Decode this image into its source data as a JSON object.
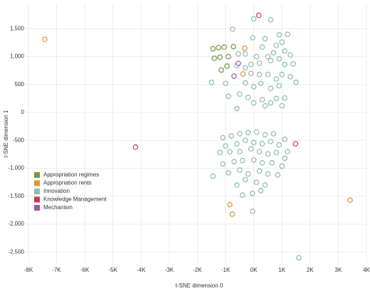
{
  "chart_data": {
    "type": "scatter",
    "x_label": "t-SNE dimension 0",
    "y_label": "t-SNE dimension 1",
    "xlim": [
      -8100,
      4000
    ],
    "ylim": [
      -2700,
      1950
    ],
    "grid": true,
    "legend": "lower-left",
    "xticks": [
      {
        "value": -8000,
        "label": "-8K"
      },
      {
        "value": -7000,
        "label": "-7K"
      },
      {
        "value": -6000,
        "label": "-6K"
      },
      {
        "value": -5000,
        "label": "-5K"
      },
      {
        "value": -4000,
        "label": "-4K"
      },
      {
        "value": -3000,
        "label": "-3K"
      },
      {
        "value": -2000,
        "label": "-2K"
      },
      {
        "value": -1000,
        "label": "-1K"
      },
      {
        "value": 0,
        "label": "0K"
      },
      {
        "value": 1000,
        "label": "1K"
      },
      {
        "value": 2000,
        "label": "2K"
      },
      {
        "value": 3000,
        "label": "3K"
      },
      {
        "value": 4000,
        "label": "4K"
      }
    ],
    "yticks": [
      {
        "value": 1500,
        "label": "1,500"
      },
      {
        "value": 1000,
        "label": "1,000"
      },
      500,
      0,
      -500,
      {
        "value": -1000,
        "label": "-1,000"
      },
      {
        "value": -1500,
        "label": "-1,500"
      },
      {
        "value": -2000,
        "label": "-2,000"
      },
      {
        "value": -2500,
        "label": "-2,500"
      }
    ],
    "series": [
      {
        "name": "Appropriation regimes",
        "color": "#6f9a3c",
        "x": [
          -1450,
          -1250,
          -1050,
          -720,
          -1400,
          -1200,
          -900,
          -1150,
          -950
        ],
        "y": [
          1140,
          1160,
          1170,
          1180,
          970,
          990,
          1000,
          760,
          830
        ]
      },
      {
        "name": "Appropriation rents",
        "color": "#d69a34",
        "x": [
          -7420,
          -320,
          -850,
          -760,
          3420,
          -380
        ],
        "y": [
          1310,
          1150,
          -1650,
          -1820,
          -1570,
          690
        ]
      },
      {
        "name": "Innovation",
        "color": "#8dbab2",
        "x": [
          -750,
          -40,
          0,
          600,
          900,
          1200,
          1000,
          800,
          1100,
          1300,
          700,
          400,
          300,
          600,
          900,
          1100,
          1400,
          200,
          -100,
          -300,
          -600,
          -100,
          200,
          500,
          800,
          1000,
          1300,
          1500,
          -1500,
          -1000,
          -300,
          0,
          250,
          600,
          900,
          -900,
          -200,
          0,
          300,
          600,
          800,
          1100,
          -600,
          -500,
          400,
          1000,
          -300,
          100,
          500,
          -550,
          -1100,
          -800,
          -500,
          -200,
          100,
          400,
          700,
          1100,
          -1000,
          -600,
          -300,
          0,
          300,
          600,
          900,
          1200,
          -1200,
          -850,
          -500,
          -100,
          200,
          500,
          800,
          1100,
          -1100,
          -700,
          -400,
          0,
          300,
          650,
          1000,
          -900,
          -500,
          -200,
          200,
          500,
          850,
          -300,
          100,
          400,
          -600,
          -400,
          -50,
          250,
          -1450,
          1600,
          -40
        ],
        "y": [
          1490,
          1340,
          1680,
          1660,
          1390,
          1400,
          1260,
          1200,
          1100,
          1030,
          1070,
          1320,
          1170,
          930,
          960,
          860,
          870,
          880,
          860,
          800,
          840,
          700,
          680,
          680,
          600,
          680,
          640,
          540,
          540,
          520,
          530,
          460,
          520,
          430,
          480,
          290,
          270,
          170,
          230,
          170,
          250,
          260,
          70,
          330,
          120,
          120,
          1050,
          1000,
          1000,
          1050,
          -450,
          -420,
          -380,
          -360,
          -350,
          -400,
          -380,
          -480,
          -600,
          -560,
          -500,
          -540,
          -560,
          -520,
          -580,
          -700,
          -720,
          -700,
          -700,
          -650,
          -700,
          -740,
          -720,
          -820,
          -920,
          -880,
          -860,
          -850,
          -900,
          -900,
          -960,
          -1080,
          -1030,
          -1100,
          -1050,
          -1100,
          -1120,
          -1200,
          -1250,
          -1300,
          -1300,
          -1480,
          -1450,
          -1400,
          -1140,
          -2600,
          -1770
        ]
      },
      {
        "name": "Knowledge Management",
        "color": "#c23b4e",
        "x": [
          180,
          -4200,
          1480
        ],
        "y": [
          1740,
          -620,
          -560
        ]
      },
      {
        "name": "Mechanism",
        "color": "#9b5a9c",
        "x": [
          -700,
          -550
        ],
        "y": [
          650,
          880
        ]
      }
    ]
  }
}
